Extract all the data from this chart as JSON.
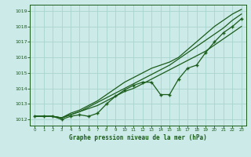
{
  "xlabel": "Graphe pression niveau de la mer (hPa)",
  "bg_color": "#cceae7",
  "grid_color": "#aad4ce",
  "line_color": "#1a5c1a",
  "x": [
    0,
    1,
    2,
    3,
    4,
    5,
    6,
    7,
    8,
    9,
    10,
    11,
    12,
    13,
    14,
    15,
    16,
    17,
    18,
    19,
    20,
    21,
    22,
    23
  ],
  "line_straight1": [
    1012.2,
    1012.2,
    1012.2,
    1012.1,
    1012.3,
    1012.5,
    1012.7,
    1012.9,
    1013.2,
    1013.5,
    1013.8,
    1014.0,
    1014.3,
    1014.6,
    1014.9,
    1015.2,
    1015.5,
    1015.8,
    1016.1,
    1016.4,
    1016.8,
    1017.2,
    1017.6,
    1018.0
  ],
  "line_straight2": [
    1012.2,
    1012.2,
    1012.2,
    1012.1,
    1012.3,
    1012.5,
    1012.8,
    1013.1,
    1013.4,
    1013.7,
    1014.0,
    1014.3,
    1014.6,
    1014.9,
    1015.2,
    1015.5,
    1015.9,
    1016.3,
    1016.7,
    1017.1,
    1017.5,
    1017.9,
    1018.4,
    1018.8
  ],
  "line_wavy": [
    1012.2,
    1012.2,
    1012.2,
    1012.0,
    1012.2,
    1012.3,
    1012.2,
    1012.4,
    1013.0,
    1013.5,
    1013.9,
    1014.2,
    1014.4,
    1014.4,
    1013.6,
    1013.6,
    1014.6,
    1015.3,
    1015.5,
    1016.3,
    1017.0,
    1017.6,
    1018.0,
    1018.5
  ],
  "line_top": [
    1012.2,
    1012.2,
    1012.2,
    1012.1,
    1012.4,
    1012.6,
    1012.9,
    1013.2,
    1013.6,
    1014.0,
    1014.4,
    1014.7,
    1015.0,
    1015.3,
    1015.5,
    1015.7,
    1016.0,
    1016.5,
    1017.0,
    1017.5,
    1018.0,
    1018.4,
    1018.8,
    1019.1
  ],
  "ylim": [
    1011.6,
    1019.4
  ],
  "yticks": [
    1012,
    1013,
    1014,
    1015,
    1016,
    1017,
    1018,
    1019
  ],
  "xlim": [
    -0.5,
    23.5
  ],
  "xticks": [
    0,
    1,
    2,
    3,
    4,
    5,
    6,
    7,
    8,
    9,
    10,
    11,
    12,
    13,
    14,
    15,
    16,
    17,
    18,
    19,
    20,
    21,
    22,
    23
  ]
}
